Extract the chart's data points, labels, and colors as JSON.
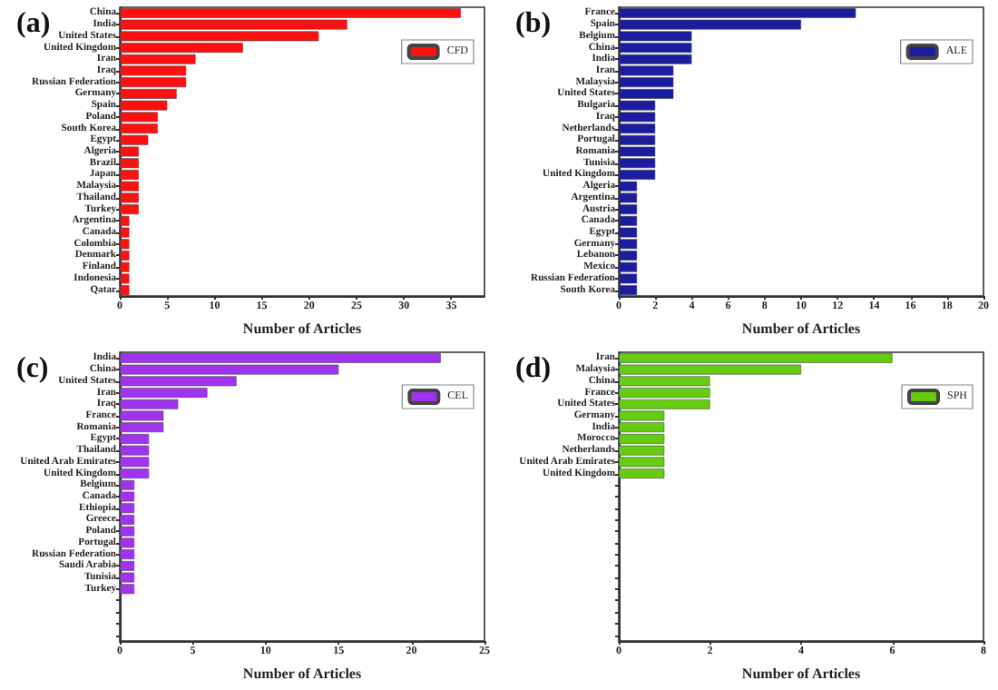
{
  "chart_data": [
    {
      "type": "bar",
      "orientation": "horizontal",
      "title": "(a)",
      "xlabel": "Number of Articles",
      "legend": "top right",
      "grid": false,
      "xlim": [
        0,
        38.5
      ],
      "xticks": [
        0,
        5,
        10,
        15,
        20,
        25,
        30,
        35
      ],
      "categories": [
        "China",
        "India",
        "United States",
        "United Kingdom",
        "Iran",
        "Iraq",
        "Russian Federation",
        "Germany",
        "Spain",
        "Poland",
        "South Korea",
        "Egypt",
        "Algeria",
        "Brazil",
        "Japan",
        "Malaysia",
        "Thailand",
        "Turkey",
        "Argentina",
        "Canada",
        "Colombia",
        "Denmark",
        "Finland",
        "Indonesia",
        "Qatar"
      ],
      "series": [
        {
          "name": "CFD",
          "color": "#ff1010",
          "values": [
            36,
            24,
            21,
            13,
            8,
            7,
            7,
            6,
            5,
            4,
            4,
            3,
            2,
            2,
            2,
            2,
            2,
            2,
            1,
            1,
            1,
            1,
            1,
            1,
            1
          ]
        }
      ]
    },
    {
      "type": "bar",
      "orientation": "horizontal",
      "title": "(b)",
      "xlabel": "Number of Articles",
      "legend": "top right",
      "grid": false,
      "xlim": [
        0,
        20
      ],
      "xticks": [
        0,
        2,
        4,
        6,
        8,
        10,
        12,
        14,
        16,
        18,
        20
      ],
      "categories": [
        "France",
        "Spain",
        "Belgium",
        "China",
        "India",
        "Iran",
        "Malaysia",
        "United States",
        "Bulgaria",
        "Iraq",
        "Netherlands",
        "Portugal",
        "Romania",
        "Tunisia",
        "United Kingdom",
        "Algeria",
        "Argentina",
        "Austria",
        "Canada",
        "Egypt",
        "Germany",
        "Lebanon",
        "Mexico",
        "Russian Federation",
        "South Korea"
      ],
      "series": [
        {
          "name": "ALE",
          "color": "#1c1ca0",
          "values": [
            13,
            10,
            4,
            4,
            4,
            3,
            3,
            3,
            2,
            2,
            2,
            2,
            2,
            2,
            2,
            1,
            1,
            1,
            1,
            1,
            1,
            1,
            1,
            1,
            1
          ]
        }
      ]
    },
    {
      "type": "bar",
      "orientation": "horizontal",
      "title": "(c)",
      "xlabel": "Number of Articles",
      "legend": "top right",
      "grid": false,
      "xlim": [
        0,
        25
      ],
      "xticks": [
        0,
        5,
        10,
        15,
        20,
        25
      ],
      "categories": [
        "India",
        "China",
        "United States",
        "Iran",
        "Iraq",
        "France",
        "Romania",
        "Egypt",
        "Thailand",
        "United Arab Emirates",
        "United Kingdom",
        "Belgium",
        "Canada",
        "Ethiopia",
        "Greece",
        "Poland",
        "Portugal",
        "Russian Federation",
        "Saudi Arabia",
        "Tunisia",
        "Turkey",
        null,
        null,
        null,
        null
      ],
      "series": [
        {
          "name": "CEL",
          "color": "#a033f0",
          "values": [
            22,
            15,
            8,
            6,
            4,
            3,
            3,
            2,
            2,
            2,
            2,
            1,
            1,
            1,
            1,
            1,
            1,
            1,
            1,
            1,
            1,
            null,
            null,
            null,
            null
          ]
        }
      ]
    },
    {
      "type": "bar",
      "orientation": "horizontal",
      "title": "(d)",
      "xlabel": "Number of Articles",
      "legend": "top right",
      "grid": false,
      "xlim": [
        0,
        8
      ],
      "xticks": [
        0,
        2,
        4,
        6,
        8
      ],
      "categories": [
        "Iran",
        "Malaysia",
        "China",
        "France",
        "United States",
        "Germany",
        "India",
        "Morocco",
        "Netherlands",
        "United Arab Emirates",
        "United Kingdom",
        null,
        null,
        null,
        null,
        null,
        null,
        null,
        null,
        null,
        null,
        null,
        null,
        null,
        null
      ],
      "series": [
        {
          "name": "SPH",
          "color": "#66cc11",
          "values": [
            6,
            4,
            2,
            2,
            2,
            1,
            1,
            1,
            1,
            1,
            1,
            null,
            null,
            null,
            null,
            null,
            null,
            null,
            null,
            null,
            null,
            null,
            null,
            null,
            null
          ]
        }
      ]
    }
  ]
}
